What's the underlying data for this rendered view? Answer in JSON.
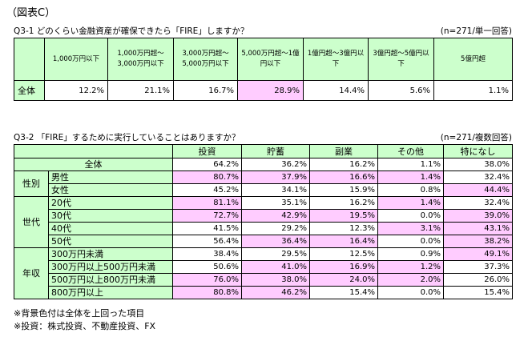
{
  "figure_title": "（図表C）",
  "q1": {
    "title": "Q3-1 どのくらい金融資産が確保できたら「FIRE」しますか？",
    "note": "(n=271/単一回答)",
    "headers": [
      "1,000万円以下",
      "1,000万円超～3,000万円以下",
      "3,000万円超～5,000万円以下",
      "5,000万円超～1億円以下",
      "1億円超～3億円以下",
      "3億円超～5億円以下",
      "5億円超"
    ],
    "row_label": "全体",
    "values": [
      "12.2%",
      "21.1%",
      "16.7%",
      "28.9%",
      "14.4%",
      "5.6%",
      "1.1%"
    ]
  },
  "q2": {
    "title": "Q3-2 「FIRE」するために実行していることはありますか？",
    "note": "(n=271/複数回答)",
    "headers": [
      "投資",
      "貯蓄",
      "副業",
      "その他",
      "特になし"
    ],
    "total_label": "全体",
    "total_values": [
      "64.2%",
      "36.2%",
      "16.2%",
      "1.1%",
      "38.0%"
    ],
    "groups": [
      {
        "label": "性別",
        "rows": [
          {
            "label": "男性",
            "values": [
              "80.7%",
              "37.9%",
              "16.6%",
              "1.4%",
              "32.4%"
            ]
          },
          {
            "label": "女性",
            "values": [
              "45.2%",
              "34.1%",
              "15.9%",
              "0.8%",
              "44.4%"
            ]
          }
        ]
      },
      {
        "label": "世代",
        "rows": [
          {
            "label": "20代",
            "values": [
              "81.1%",
              "35.1%",
              "16.2%",
              "1.4%",
              "32.4%"
            ]
          },
          {
            "label": "30代",
            "values": [
              "72.7%",
              "42.9%",
              "19.5%",
              "0.0%",
              "39.0%"
            ]
          },
          {
            "label": "40代",
            "values": [
              "41.5%",
              "29.2%",
              "12.3%",
              "3.1%",
              "43.1%"
            ]
          },
          {
            "label": "50代",
            "values": [
              "56.4%",
              "36.4%",
              "16.4%",
              "0.0%",
              "38.2%"
            ]
          }
        ]
      },
      {
        "label": "年収",
        "rows": [
          {
            "label": "300万円未満",
            "values": [
              "38.4%",
              "29.5%",
              "12.5%",
              "0.9%",
              "49.1%"
            ]
          },
          {
            "label": "300万円以上500万円未満",
            "values": [
              "50.6%",
              "41.0%",
              "16.9%",
              "1.2%",
              "37.3%"
            ]
          },
          {
            "label": "500万円以上800万円未満",
            "values": [
              "76.0%",
              "38.0%",
              "24.0%",
              "2.0%",
              "26.0%"
            ]
          },
          {
            "label": "800万円以上",
            "values": [
              "80.8%",
              "46.2%",
              "15.4%",
              "0.0%",
              "15.4%"
            ]
          }
        ]
      }
    ]
  },
  "footnotes": [
    "※背景色付は全体を上回った項目",
    "※投資：株式投資、不動産投資、FX"
  ],
  "colors": {
    "header_bg": "#ccffcc",
    "highlight_bg": "#ffccff"
  }
}
